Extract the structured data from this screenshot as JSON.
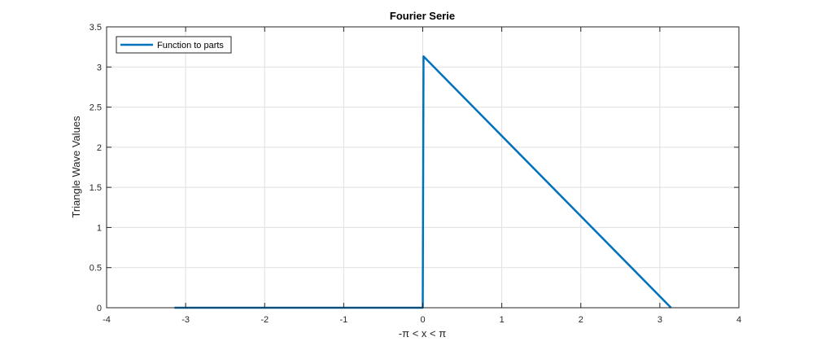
{
  "chart_data": {
    "type": "line",
    "title": "Fourier Serie",
    "xlabel": "-π < x < π",
    "ylabel": "Triangle Wave Values",
    "xlim": [
      -4,
      4
    ],
    "ylim": [
      0,
      3.5
    ],
    "xticks": [
      -4,
      -3,
      -2,
      -1,
      0,
      1,
      2,
      3,
      4
    ],
    "xtick_labels": [
      "-4",
      "-3",
      "-2",
      "-1",
      "0",
      "1",
      "2",
      "3",
      "4"
    ],
    "yticks": [
      0,
      0.5,
      1,
      1.5,
      2,
      2.5,
      3,
      3.5
    ],
    "ytick_labels": [
      "0",
      "0.5",
      "1",
      "1.5",
      "2",
      "2.5",
      "3",
      "3.5"
    ],
    "grid": true,
    "legend_position": "top-left",
    "series": [
      {
        "name": "Function to parts",
        "color": "#0072BD",
        "x": [
          -3.1416,
          0,
          0.01,
          3.1416
        ],
        "y": [
          0,
          0,
          3.1316,
          0
        ]
      }
    ]
  }
}
